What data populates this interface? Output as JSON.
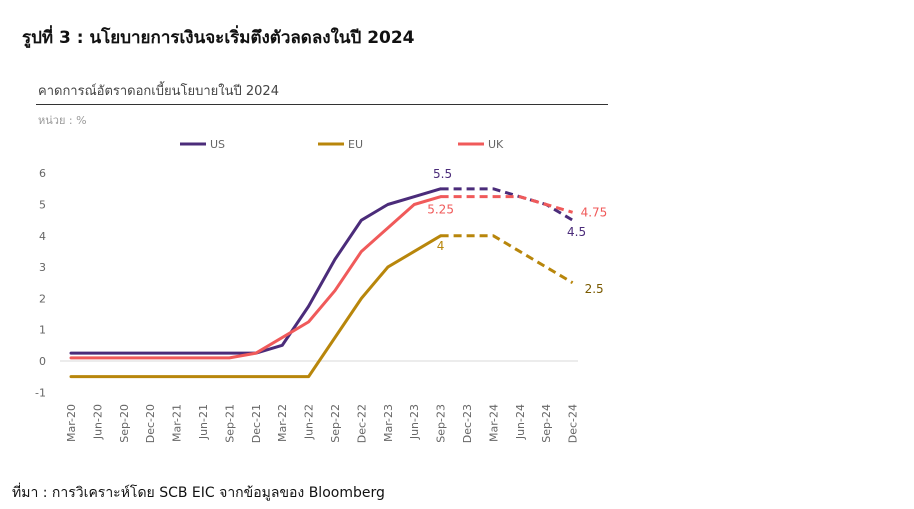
{
  "figure_title": "รูปที่ 3 :  นโยบายการเงินจะเริ่มตึงตัวลดลงในปี 2024",
  "source": "ที่มา : การวิเคราะห์โดย SCB EIC จากข้อมูลของ Bloomberg",
  "chart_data": {
    "type": "line",
    "title": "คาดการณ์อัตราดอกเบี้ยนโยบายในปี 2024",
    "unit_label": "หน่วย : %",
    "xlabel": "",
    "ylabel": "",
    "ylim": [
      -1,
      6
    ],
    "yticks": [
      -1,
      0,
      1,
      2,
      3,
      4,
      5,
      6
    ],
    "legend_position": "top",
    "grid": false,
    "categories": [
      "Mar-20",
      "Jun-20",
      "Sep-20",
      "Dec-20",
      "Mar-21",
      "Jun-21",
      "Sep-21",
      "Dec-21",
      "Mar-22",
      "Jun-22",
      "Sep-22",
      "Dec-22",
      "Mar-23",
      "Jun-23",
      "Sep-23",
      "Dec-23",
      "Mar-24",
      "Jun-24",
      "Sep-24",
      "Dec-24"
    ],
    "forecast_start_index": 14,
    "series": [
      {
        "name": "US",
        "color": "#4b2c7a",
        "values": [
          0.25,
          0.25,
          0.25,
          0.25,
          0.25,
          0.25,
          0.25,
          0.25,
          0.5,
          1.75,
          3.25,
          4.5,
          5.0,
          5.25,
          5.5,
          5.5,
          5.5,
          5.25,
          5.0,
          4.5
        ]
      },
      {
        "name": "EU",
        "color": "#b8860b",
        "values": [
          -0.5,
          -0.5,
          -0.5,
          -0.5,
          -0.5,
          -0.5,
          -0.5,
          -0.5,
          -0.5,
          -0.5,
          0.75,
          2.0,
          3.0,
          3.5,
          4.0,
          4.0,
          4.0,
          3.5,
          3.0,
          2.5
        ]
      },
      {
        "name": "UK",
        "color": "#f05a5a",
        "values": [
          0.1,
          0.1,
          0.1,
          0.1,
          0.1,
          0.1,
          0.1,
          0.25,
          0.75,
          1.25,
          2.25,
          3.5,
          4.25,
          5.0,
          5.25,
          5.25,
          5.25,
          5.25,
          5.0,
          4.75
        ]
      }
    ],
    "annotations": [
      {
        "text": "5.5",
        "series": "US",
        "index": 14,
        "color": "#4b2c7a"
      },
      {
        "text": "5.25",
        "series": "UK",
        "index": 14,
        "color": "#f05a5a"
      },
      {
        "text": "4",
        "series": "EU",
        "index": 14,
        "color": "#b8860b"
      },
      {
        "text": "4.75",
        "series": "UK",
        "index": 19,
        "color": "#f05a5a"
      },
      {
        "text": "4.5",
        "series": "US",
        "index": 19,
        "color": "#4b2c7a"
      },
      {
        "text": "2.5",
        "series": "EU",
        "index": 19,
        "color": "#7a5a00"
      }
    ]
  }
}
